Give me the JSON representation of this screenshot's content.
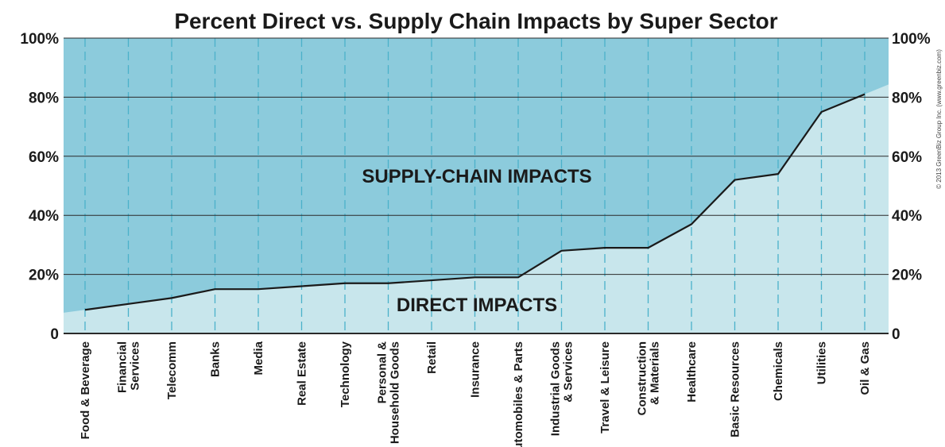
{
  "chart_data": {
    "type": "area",
    "title": "Percent Direct vs. Supply Chain Impacts by Super Sector",
    "categories": [
      "Food & Beverage",
      "Financial\nServices",
      "Telecomm",
      "Banks",
      "Media",
      "Real Estate",
      "Technology",
      "Personal &\nHousehold Goods",
      "Retail",
      "Insurance",
      "Automobiles & Parts",
      "Industrial Goods\n& Services",
      "Travel & Leisure",
      "Construction\n& Materials",
      "Healthcare",
      "Basic Resources",
      "Chemicals",
      "Utilities",
      "Oil & Gas"
    ],
    "series": [
      {
        "name": "DIRECT IMPACTS",
        "values": [
          8,
          10,
          12,
          15,
          15,
          16,
          17,
          17,
          18,
          19,
          19,
          28,
          29,
          29,
          37,
          52,
          54,
          75,
          81
        ]
      }
    ],
    "regions": {
      "upper": "SUPPLY-CHAIN IMPACTS",
      "lower": "DIRECT IMPACTS"
    },
    "y_ticks": [
      "0",
      "20%",
      "40%",
      "60%",
      "80%",
      "100%"
    ],
    "ylim": [
      0,
      100
    ],
    "grid": true,
    "copyright": "© 2013 GreenBiz Group Inc. (www.greenbiz.com)",
    "colors": {
      "supply_chain": "#8ccbdc",
      "direct": "#c8e6ec",
      "line": "#1a1a1a",
      "dash": "#4bb1ca"
    }
  }
}
